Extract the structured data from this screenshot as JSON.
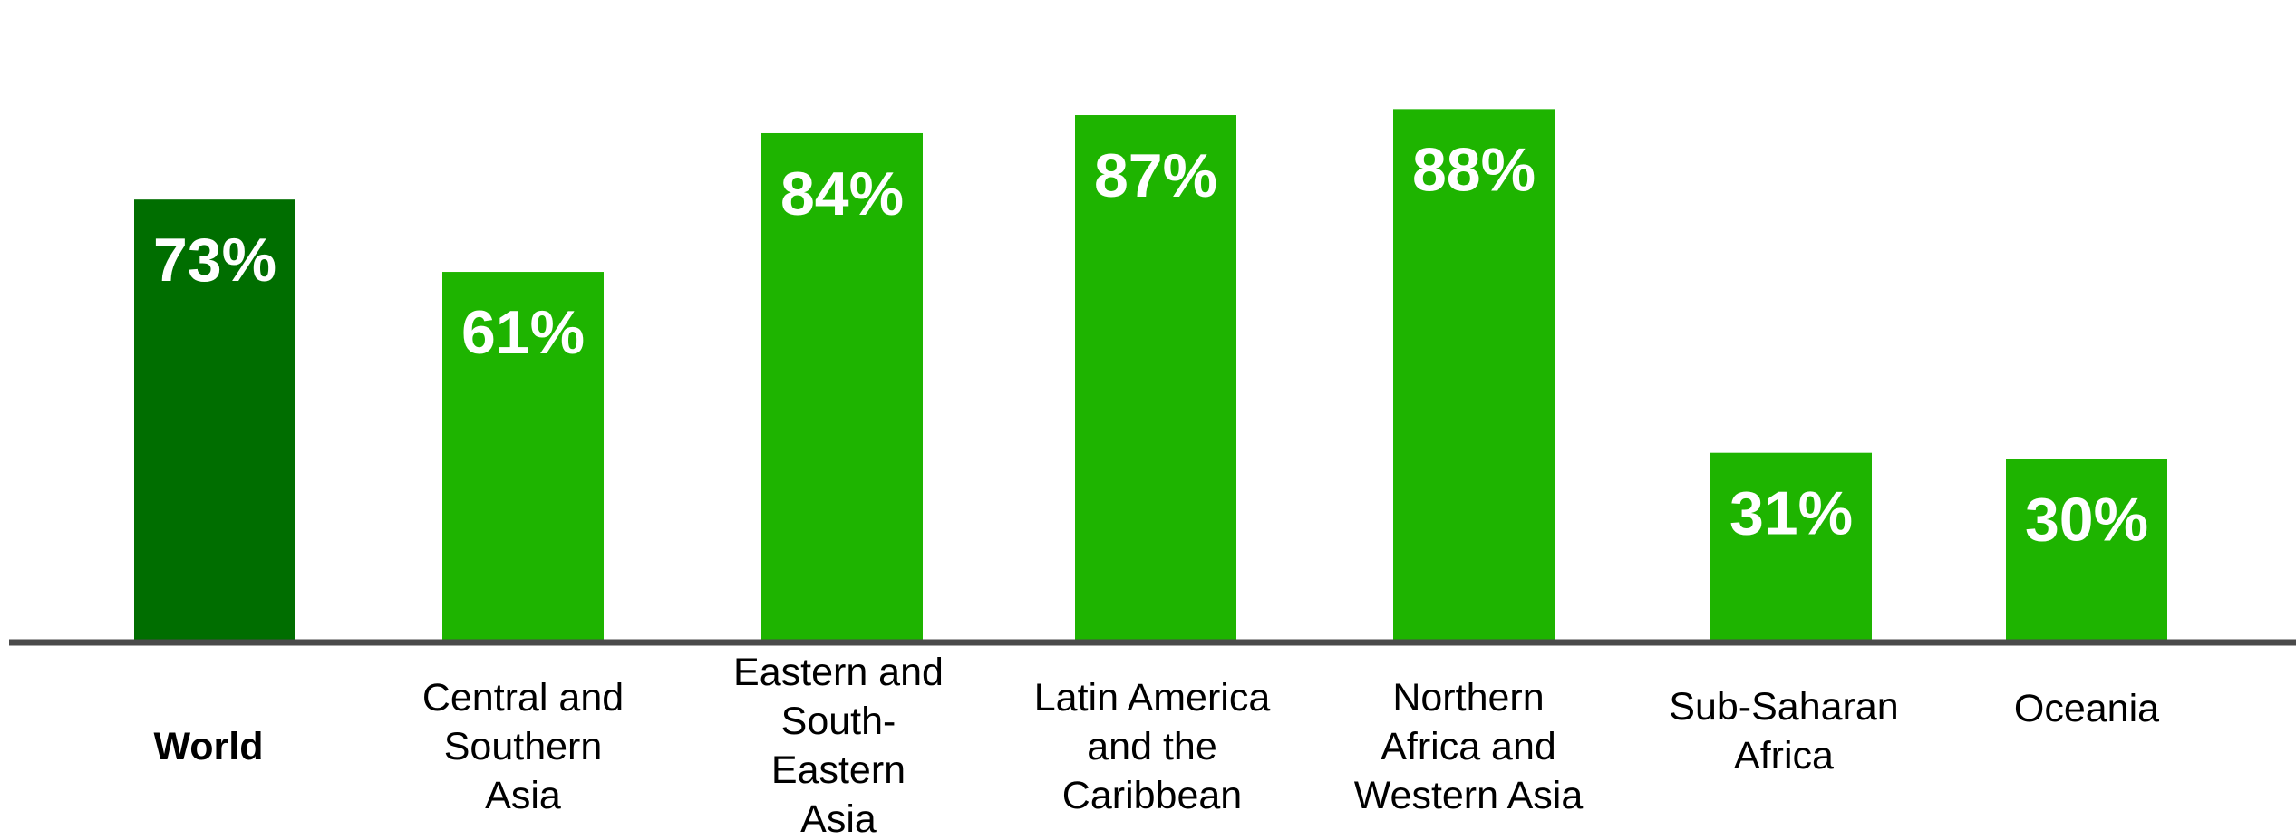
{
  "chart_data": {
    "type": "bar",
    "title": "",
    "xlabel": "",
    "ylabel": "",
    "ylim": [
      0,
      88
    ],
    "grid": false,
    "legend": "none",
    "categories": [
      "World",
      "Central and Southern Asia",
      "Eastern and South-Eastern Asia",
      "Latin America and the Caribbean",
      "Northern Africa and Western Asia",
      "Sub-Saharan Africa",
      "Oceania"
    ],
    "category_lines": [
      [
        "World"
      ],
      [
        "Central and",
        "Southern",
        "Asia"
      ],
      [
        "Eastern and",
        "South-",
        "Eastern",
        "Asia"
      ],
      [
        "Latin America",
        "and the",
        "Caribbean"
      ],
      [
        "Northern",
        "Africa and",
        "Western Asia"
      ],
      [
        "Sub-Saharan",
        "Africa"
      ],
      [
        "Oceania"
      ]
    ],
    "values": [
      73,
      61,
      84,
      87,
      88,
      31,
      30
    ],
    "value_labels": [
      "73%",
      "61%",
      "84%",
      "87%",
      "88%",
      "31%",
      "30%"
    ],
    "highlight_index": 0,
    "colors": {
      "highlight": "#006e00",
      "bar": "#1eb400",
      "axis": "#4a4a4a"
    }
  }
}
